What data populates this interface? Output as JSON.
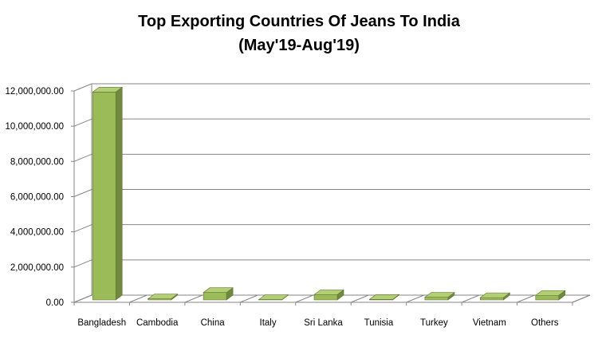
{
  "chart_data": {
    "type": "bar",
    "title": "Top Exporting Countries Of Jeans To India",
    "subtitle": "(May'19-Aug'19)",
    "categories": [
      "Bangladesh",
      "Cambodia",
      "China",
      "Italy",
      "Sri Lanka",
      "Tunisia",
      "Turkey",
      "Vietnam",
      "Others"
    ],
    "values": [
      11800000,
      60000,
      420000,
      20000,
      300000,
      30000,
      150000,
      130000,
      260000
    ],
    "ylim": [
      0,
      12000000
    ],
    "yticks": [
      0,
      2000000,
      4000000,
      6000000,
      8000000,
      10000000,
      12000000
    ],
    "ytick_labels": [
      "0.00",
      "2,000,000.00",
      "4,000,000.00",
      "6,000,000.00",
      "8,000,000.00",
      "10,000,000.00",
      "12,000,000.00"
    ],
    "grid": true,
    "legend": "none",
    "bar_color": "#9bbb59",
    "bar_side_color": "#71893f",
    "bar_top_color": "#b3cf74"
  }
}
